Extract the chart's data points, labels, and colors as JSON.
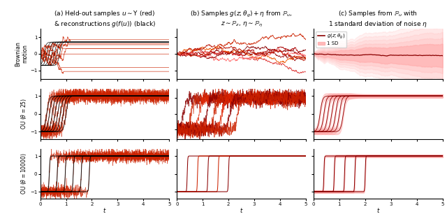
{
  "title_a": "(a) Held-out samples $u \\sim \\Upsilon$ (red)\n& reconstructions $g(f(u))$ (black)",
  "title_b": "(b) Samples $g(z;\\theta_g) + \\eta$ from $\\mathbb{P}_u$,\n$z \\sim \\mathbb{P}_z$, $\\eta \\sim \\mathbb{P}_\\eta$",
  "title_c": "(c) Samples from $\\mathbb{P}_u$ with\n1 standard deviation of noise $\\eta$",
  "row_labels": [
    "Brownian\nmotion",
    "OU ($\\theta = 25$)",
    "OU ($\\theta = 10000$)"
  ],
  "xlim": [
    0,
    5
  ],
  "xticks": [
    0,
    1,
    2,
    3,
    4,
    5
  ],
  "xlabel": "$t$",
  "figsize": [
    6.4,
    3.16
  ],
  "dpi": 100,
  "red_dark": "#8B0000",
  "red_mid": "#CC2200",
  "red_light": "#FF6666",
  "red_fill": "#FFAAAA",
  "black": "#000000",
  "legend_line": "$g(z;\\theta_g)$",
  "legend_fill": "1 SD"
}
